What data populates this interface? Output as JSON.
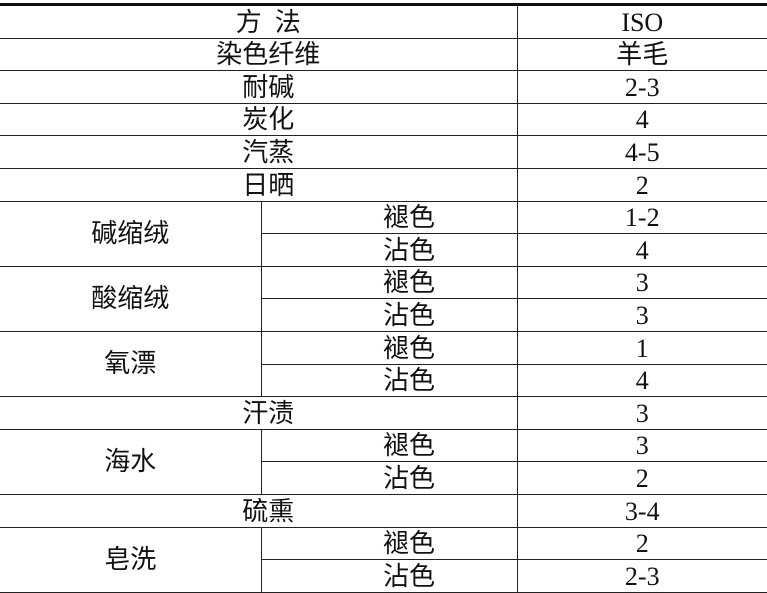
{
  "header": {
    "method": "方  法",
    "standard": "ISO"
  },
  "rows": [
    {
      "label": "染色纤维",
      "value": "羊毛"
    },
    {
      "label": "耐碱",
      "value": "2-3"
    },
    {
      "label": "炭化",
      "value": "4"
    },
    {
      "label": "汽蒸",
      "value": "4-5"
    },
    {
      "label": "日晒",
      "value": "2"
    },
    {
      "label": "碱缩绒",
      "sub": [
        {
          "label": "褪色",
          "value": "1-2"
        },
        {
          "label": "沾色",
          "value": "4"
        }
      ]
    },
    {
      "label": "酸缩绒",
      "sub": [
        {
          "label": "褪色",
          "value": "3"
        },
        {
          "label": "沾色",
          "value": "3"
        }
      ]
    },
    {
      "label": "氧漂",
      "sub": [
        {
          "label": "褪色",
          "value": "1"
        },
        {
          "label": "沾色",
          "value": "4"
        }
      ]
    },
    {
      "label": "汗渍",
      "value": "3"
    },
    {
      "label": "海水",
      "sub": [
        {
          "label": "褪色",
          "value": "3"
        },
        {
          "label": "沾色",
          "value": "2"
        }
      ]
    },
    {
      "label": "硫熏",
      "value": "3-4"
    },
    {
      "label": "皂洗",
      "sub": [
        {
          "label": "褪色",
          "value": "2"
        },
        {
          "label": "沾色",
          "value": "2-3"
        }
      ]
    }
  ]
}
